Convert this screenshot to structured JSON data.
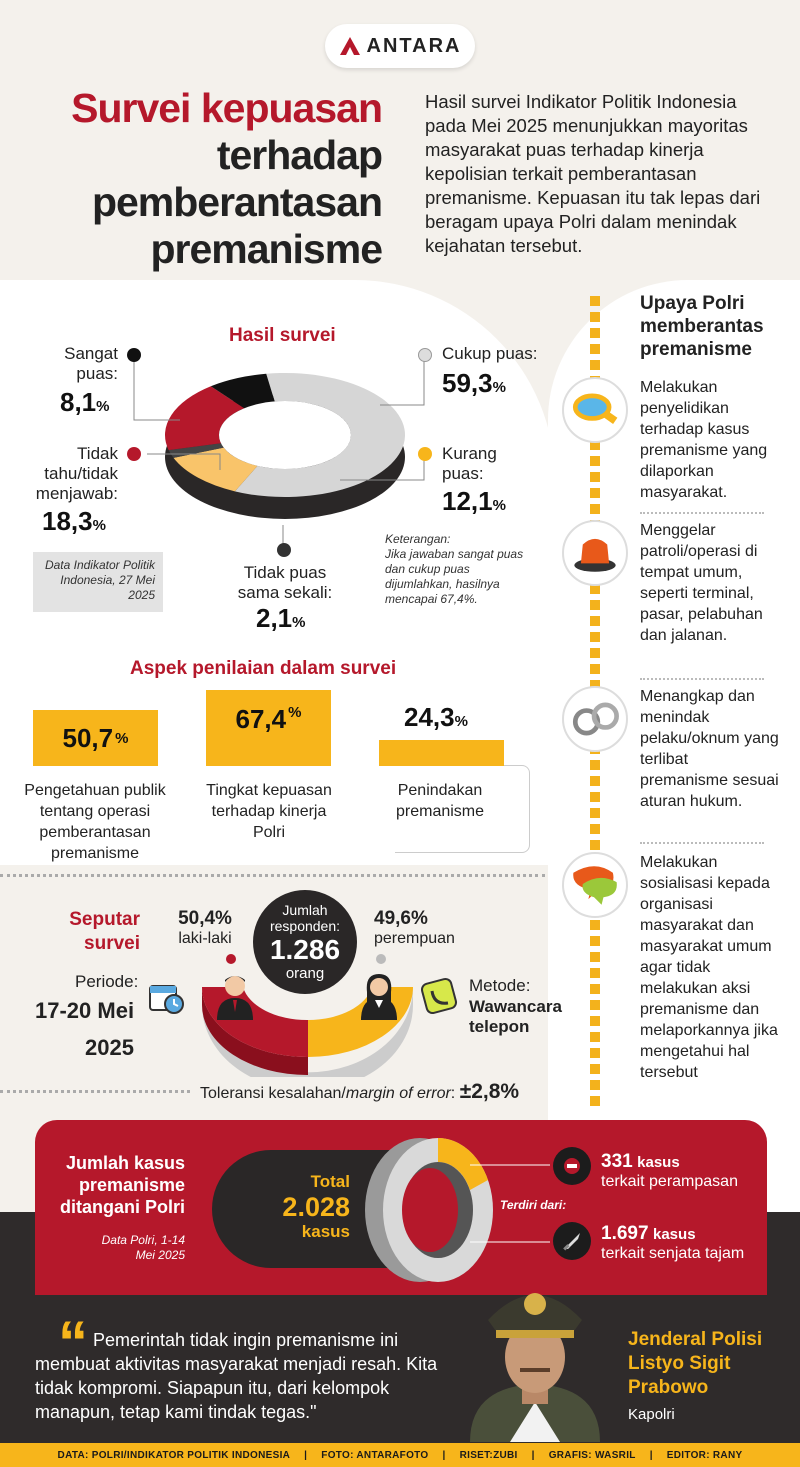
{
  "header": {
    "logo": "ANTARA",
    "title_lines": [
      "Survei kepuasan",
      "terhadap",
      "pemberantasan",
      "premanisme"
    ],
    "intro": "Hasil survei Indikator Politik Indonesia pada Mei 2025 menunjukkan mayoritas masyarakat puas terhadap kinerja kepolisian terkait pemberantasan premanisme. Kepuasan itu tak lepas dari beragam upaya Polri dalam menindak kejahatan tersebut."
  },
  "hasil": {
    "title": "Hasil survei",
    "items": [
      {
        "label": "Sangat puas:",
        "value": "8,1",
        "unit": "%",
        "pct": 8.1,
        "color": "#111111"
      },
      {
        "label": "Tidak tahu/tidak menjawab:",
        "value": "18,3",
        "unit": "%",
        "pct": 18.3,
        "color": "#b5182b"
      },
      {
        "label": "Tidak puas sama sekali:",
        "value": "2,1",
        "unit": "%",
        "pct": 2.1,
        "color": "#444444"
      },
      {
        "label": "Kurang puas:",
        "value": "12,1",
        "unit": "%",
        "pct": 12.1,
        "color": "#f9c46a"
      },
      {
        "label": "Cukup puas:",
        "value": "59,3",
        "unit": "%",
        "pct": 59.3,
        "color": "#d6d6d6"
      }
    ],
    "data_note": "Data Indikator Politik Indonesia, 27 Mei 2025",
    "keterangan_title": "Keterangan:",
    "keterangan": "Jika jawaban sangat puas dan cukup puas dijumlahkan, hasilnya mencapai 67,4%."
  },
  "aspek": {
    "title": "Aspek penilaian dalam survei",
    "bars": [
      {
        "value": "50,7",
        "unit": "%",
        "pct": 50.7,
        "label": "Pengetahuan publik tentang operasi pemberantasan premanisme"
      },
      {
        "value": "67,4",
        "unit": "%",
        "pct": 67.4,
        "label": "Tingkat kepuasan terhadap kinerja Polri"
      },
      {
        "value": "24,3",
        "unit": "%",
        "pct": 24.3,
        "label": "Penindakan premanisme"
      }
    ]
  },
  "seputar": {
    "title_1": "Seputar",
    "title_2": "survei",
    "male_pct": "50,4%",
    "male_label": "laki-laki",
    "female_pct": "49,6%",
    "female_label": "perempuan",
    "resp_label": "Jumlah responden:",
    "resp_value": "1.286",
    "resp_unit": "orang",
    "periode_label": "Periode:",
    "periode_value_1": "17-20 Mei",
    "periode_value_2": "2025",
    "metode_label": "Metode:",
    "metode_value_1": "Wawancara",
    "metode_value_2": "telepon",
    "margin_label": "Toleransi kesalahan/",
    "margin_italic": "margin of error",
    "margin_value": "±2,8%"
  },
  "kasus": {
    "title": "Jumlah kasus premanisme ditangani Polri",
    "source": "Data Polri, 1-14 Mei 2025",
    "total_label": "Total",
    "total_value": "2.028",
    "total_unit": "kasus",
    "terdiri": "Terdiri dari:",
    "items": [
      {
        "value": "331",
        "unit": "kasus",
        "desc": "terkait perampasan",
        "icon": "robbery-icon"
      },
      {
        "value": "1.697",
        "unit": "kasus",
        "desc": "terkait senjata tajam",
        "icon": "knife-icon"
      }
    ]
  },
  "quote": {
    "text": "Pemerintah tidak ingin premanisme ini membuat aktivitas masyarakat menjadi resah. Kita tidak kompromi. Siapapun itu, dari kelompok manapun, tetap kami tindak tegas.\"",
    "name_1": "Jenderal Polisi",
    "name_2": "Listyo Sigit",
    "name_3": "Prabowo",
    "role": "Kapolri"
  },
  "upaya": {
    "title": "Upaya Polri memberantas premanisme",
    "items": [
      {
        "text": "Melakukan penyelidikan terhadap kasus premanisme yang dilaporkan masyarakat.",
        "icon": "magnifier-icon"
      },
      {
        "text": "Menggelar patroli/operasi di tempat umum, seperti terminal, pasar, pelabuhan dan jalanan.",
        "icon": "siren-icon"
      },
      {
        "text": "Menangkap dan menindak pelaku/oknum yang terlibat premanisme sesuai aturan hukum.",
        "icon": "handcuffs-icon"
      },
      {
        "text": "Melakukan sosialisasi kepada organisasi masyarakat dan masyarakat umum agar tidak melakukan aksi premanisme dan melaporkannya jika mengetahui hal tersebut",
        "icon": "chat-icon"
      }
    ]
  },
  "footer": {
    "items": [
      "DATA: POLRI/INDIKATOR POLITIK INDONESIA",
      "|",
      "FOTO: ANTARAFOTO",
      "|",
      "RISET:ZUBI",
      "|",
      "GRAFIS: WASRIL",
      "|",
      "EDITOR: RANY"
    ]
  }
}
